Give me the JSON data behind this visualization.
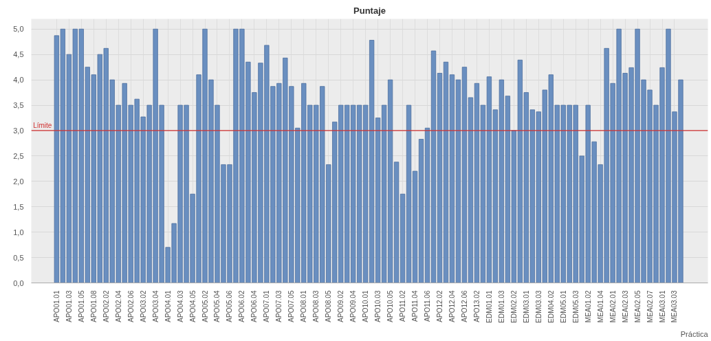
{
  "chart_data": {
    "type": "bar",
    "title": "Puntaje",
    "xlabel": "Práctica",
    "categories": [
      "APO01.01",
      null,
      "APO01.03",
      null,
      "APO01.05",
      null,
      "APO01.08",
      null,
      "APO02.02",
      null,
      "APO02.04",
      null,
      "APO02.06",
      null,
      "APO03.02",
      null,
      "APO03.04",
      null,
      "APO04.01",
      null,
      "APO04.03",
      null,
      "APO04.05",
      null,
      "APO05.02",
      null,
      "APO05.04",
      null,
      "APO05.06",
      null,
      "APO06.02",
      null,
      "APO06.04",
      null,
      "APO07.01",
      null,
      "APO07.03",
      null,
      "APO07.05",
      null,
      "APO08.01",
      null,
      "APO08.03",
      null,
      "APO08.05",
      null,
      "APO09.02",
      null,
      "APO09.04",
      null,
      "APO10.01",
      null,
      "APO10.03",
      null,
      "APO10.05",
      null,
      "APO11.02",
      null,
      "APO11.04",
      null,
      "APO11.06",
      null,
      "APO12.02",
      null,
      "APO12.04",
      null,
      "APO12.06",
      null,
      "APO13.02",
      null,
      "EDM01.01",
      null,
      "EDM01.03",
      null,
      "EDM02.02",
      null,
      "EDM03.01",
      null,
      "EDM03.03",
      null,
      "EDM04.02",
      null,
      "EDM05.01",
      null,
      "EDM05.03",
      null,
      "MEA01.02",
      null,
      "MEA01.04",
      null,
      "MEA02.01",
      null,
      "MEA02.03",
      null,
      "MEA02.05",
      null,
      "MEA02.07",
      null,
      "MEA03.01",
      null,
      "MEA03.03",
      null
    ],
    "values": [
      4.87,
      5,
      4.5,
      5,
      5,
      4.25,
      4.1,
      4.5,
      4.62,
      4.0,
      3.5,
      3.93,
      3.5,
      3.62,
      3.27,
      3.5,
      5,
      3.5,
      0.7,
      1.17,
      3.5,
      3.5,
      1.75,
      4.1,
      5,
      4.0,
      3.5,
      2.33,
      2.33,
      5,
      5,
      4.35,
      3.75,
      4.33,
      4.68,
      3.87,
      3.93,
      4.43,
      3.87,
      3.05,
      3.93,
      3.5,
      3.5,
      3.87,
      2.33,
      3.17,
      3.5,
      3.5,
      3.5,
      3.5,
      3.5,
      4.78,
      3.25,
      3.5,
      4.0,
      2.38,
      1.75,
      3.5,
      2.2,
      2.83,
      3.05,
      4.57,
      4.13,
      4.35,
      4.1,
      4.0,
      4.25,
      3.65,
      3.93,
      3.5,
      4.06,
      3.41,
      4.0,
      3.68,
      3.0,
      4.39,
      3.75,
      3.41,
      3.37,
      3.8,
      4.1,
      3.5,
      3.5,
      3.5,
      3.5,
      2.5,
      3.5,
      2.78,
      2.33,
      4.62,
      3.93,
      5,
      4.13,
      4.24,
      5,
      4.0,
      3.8,
      3.5,
      4.24,
      5,
      3.37,
      4.0
    ],
    "color": "#6a8fc0",
    "ylim": [
      0,
      5.2
    ],
    "yticks": [
      {
        "value": 0,
        "label": "0,0"
      },
      {
        "value": 0.5,
        "label": "0,5"
      },
      {
        "value": 1,
        "label": "1,0"
      },
      {
        "value": 1.5,
        "label": "1,5"
      },
      {
        "value": 2,
        "label": "2,0"
      },
      {
        "value": 2.5,
        "label": "2,5"
      },
      {
        "value": 3,
        "label": "3,0"
      },
      {
        "value": 3.5,
        "label": "3,5"
      },
      {
        "value": 4,
        "label": "4,0"
      },
      {
        "value": 4.5,
        "label": "4,5"
      },
      {
        "value": 5,
        "label": "5,0"
      }
    ],
    "grid": true,
    "ref_lines": [
      {
        "axis": "y",
        "value": 3.0,
        "label": "Límite",
        "color": "#d03030"
      }
    ]
  }
}
